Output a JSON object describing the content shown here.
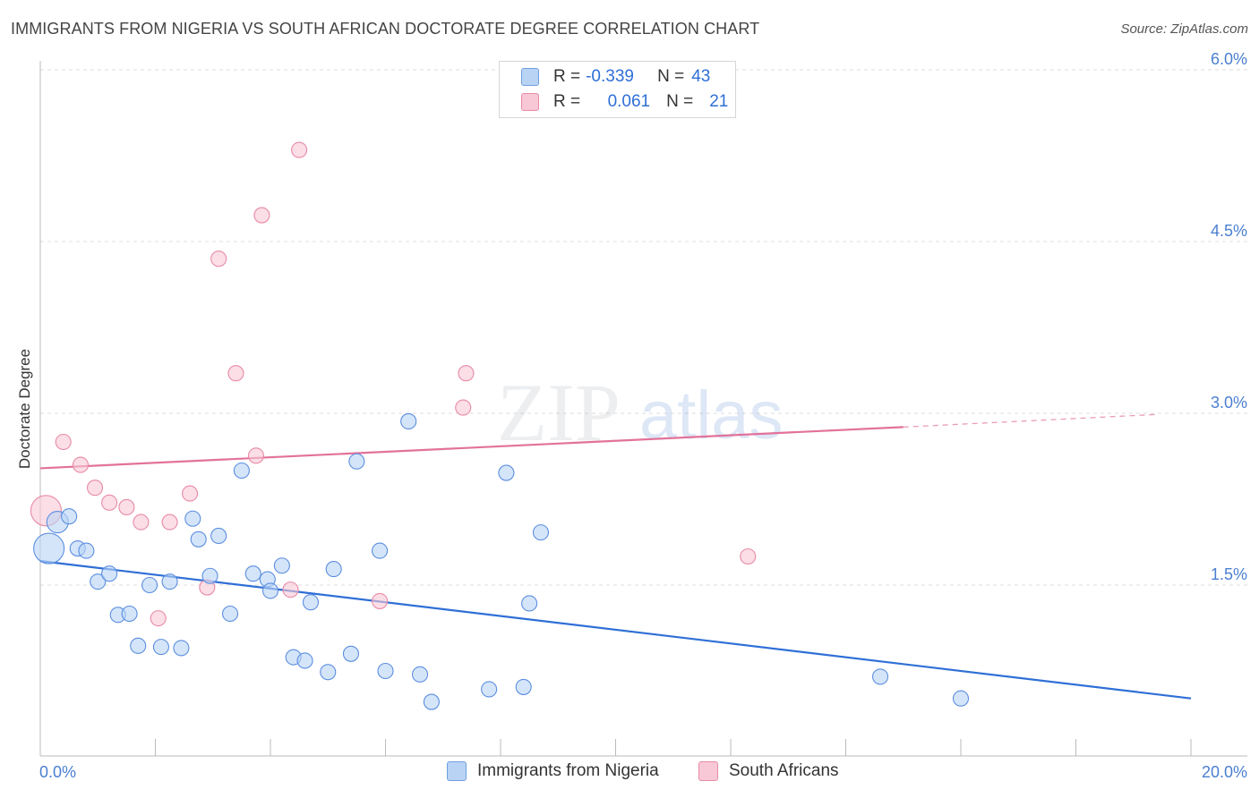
{
  "title": "IMMIGRANTS FROM NIGERIA VS SOUTH AFRICAN DOCTORATE DEGREE CORRELATION CHART",
  "source": "Source: ZipAtlas.com",
  "watermark": {
    "zip": "ZIP",
    "atlas": "atlas"
  },
  "legend": {
    "rows": [
      {
        "r_key": "R =",
        "r_value": "-0.339",
        "n_key": "N =",
        "n_value": "43",
        "fill": "#b9d3f5",
        "stroke": "#6f9fe0"
      },
      {
        "r_key": "R =",
        "r_value": "0.061",
        "n_key": "N =",
        "n_value": "21",
        "fill": "#f8c8d6",
        "stroke": "#e88aa6"
      }
    ]
  },
  "bottom_legend": [
    {
      "label": "Immigrants from Nigeria",
      "fill": "#b9d3f5",
      "stroke": "#6f9fe0"
    },
    {
      "label": "South Africans",
      "fill": "#f8c8d6",
      "stroke": "#e88aa6"
    }
  ],
  "axis": {
    "x_min_label": "0.0%",
    "x_max_label": "20.0%",
    "y_label": "Doctorate Degree",
    "y_ticks": [
      "1.5%",
      "3.0%",
      "4.5%",
      "6.0%"
    ]
  },
  "chart_data": {
    "type": "scatter",
    "xlabel": "",
    "ylabel": "Doctorate Degree",
    "xlim": [
      0,
      20
    ],
    "ylim": [
      0,
      6.15
    ],
    "y_ticks": [
      1.5,
      3.0,
      4.5,
      6.0
    ],
    "grid": "horizontal dashed",
    "legend_position": "top-center",
    "series": [
      {
        "name": "Immigrants from Nigeria",
        "color": "#5b8ee0",
        "fill": "#b9d3f5",
        "trend": {
          "x": [
            0,
            20
          ],
          "y": [
            1.71,
            0.51
          ],
          "style": "solid",
          "color": "#2f6fd6"
        },
        "points": [
          [
            0.15,
            1.82,
            3
          ],
          [
            0.3,
            2.05,
            2
          ],
          [
            0.5,
            2.1,
            1
          ],
          [
            0.65,
            1.82,
            1
          ],
          [
            0.8,
            1.8,
            1
          ],
          [
            1.0,
            1.53,
            1
          ],
          [
            1.2,
            1.6,
            1
          ],
          [
            1.35,
            1.24,
            1
          ],
          [
            1.55,
            1.25,
            1
          ],
          [
            1.7,
            0.97,
            1
          ],
          [
            1.9,
            1.5,
            1
          ],
          [
            2.1,
            0.96,
            1
          ],
          [
            2.25,
            1.53,
            1
          ],
          [
            2.45,
            0.95,
            1
          ],
          [
            2.65,
            2.08,
            1
          ],
          [
            2.75,
            1.9,
            1
          ],
          [
            2.95,
            1.58,
            1
          ],
          [
            3.1,
            1.93,
            1
          ],
          [
            3.3,
            1.25,
            1
          ],
          [
            3.5,
            2.5,
            1
          ],
          [
            3.7,
            1.6,
            1
          ],
          [
            3.95,
            1.55,
            1
          ],
          [
            4.0,
            1.45,
            1
          ],
          [
            4.2,
            1.67,
            1
          ],
          [
            4.4,
            0.87,
            1
          ],
          [
            4.6,
            0.84,
            1
          ],
          [
            4.7,
            1.35,
            1
          ],
          [
            5.0,
            0.74,
            1
          ],
          [
            5.1,
            1.64,
            1
          ],
          [
            5.4,
            0.9,
            1
          ],
          [
            5.5,
            2.58,
            1
          ],
          [
            5.9,
            1.8,
            1
          ],
          [
            6.0,
            0.75,
            1
          ],
          [
            6.4,
            2.93,
            1
          ],
          [
            6.6,
            0.72,
            1
          ],
          [
            6.8,
            0.48,
            1
          ],
          [
            7.8,
            0.59,
            1
          ],
          [
            8.1,
            2.48,
            1
          ],
          [
            8.4,
            0.61,
            1
          ],
          [
            8.5,
            1.34,
            1
          ],
          [
            8.7,
            1.96,
            1
          ],
          [
            14.6,
            0.7,
            1
          ],
          [
            16.0,
            0.51,
            1
          ]
        ]
      },
      {
        "name": "South Africans",
        "color": "#e88aa6",
        "fill": "#f8c8d6",
        "trend": {
          "x": [
            0,
            15
          ],
          "y": [
            2.52,
            2.88
          ],
          "x_dash_end": 19.4,
          "y_dash_end": 2.99,
          "style": "solid-then-dashed",
          "color": "#e2729a"
        },
        "points": [
          [
            0.1,
            2.15,
            3
          ],
          [
            0.4,
            2.75,
            1
          ],
          [
            0.7,
            2.55,
            1
          ],
          [
            0.95,
            2.35,
            1
          ],
          [
            1.2,
            2.22,
            1
          ],
          [
            1.5,
            2.18,
            1
          ],
          [
            1.75,
            2.05,
            1
          ],
          [
            2.05,
            1.21,
            1
          ],
          [
            2.25,
            2.05,
            1
          ],
          [
            2.6,
            2.3,
            1
          ],
          [
            2.9,
            1.48,
            1
          ],
          [
            3.1,
            4.35,
            1
          ],
          [
            3.4,
            3.35,
            1
          ],
          [
            3.75,
            2.63,
            1
          ],
          [
            3.85,
            4.73,
            1
          ],
          [
            4.35,
            1.46,
            1
          ],
          [
            4.5,
            5.3,
            1
          ],
          [
            5.9,
            1.36,
            1
          ],
          [
            7.35,
            3.05,
            1
          ],
          [
            7.4,
            3.35,
            1
          ],
          [
            12.3,
            1.75,
            1
          ]
        ]
      }
    ]
  }
}
